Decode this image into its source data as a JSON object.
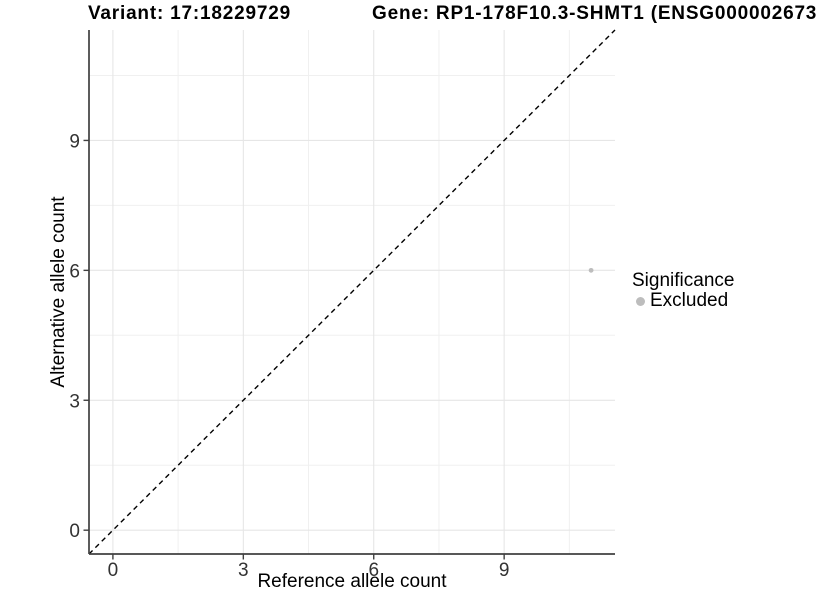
{
  "chart_data": {
    "type": "scatter",
    "title_left": "Variant: 17:18229729",
    "title_right": "Gene: RP1-178F10.3-SHMT1 (ENSG000002673",
    "xlabel": "Reference allele count",
    "ylabel": "Alternative allele count",
    "xlim": [
      -0.55,
      11.55
    ],
    "ylim": [
      -0.55,
      11.55
    ],
    "xticks": [
      0,
      3,
      6,
      9
    ],
    "yticks": [
      0,
      3,
      6,
      9
    ],
    "minor_xticks": [
      1.5,
      4.5,
      7.5,
      10.5
    ],
    "minor_yticks": [
      1.5,
      4.5,
      7.5,
      10.5
    ],
    "grid": "major+minor",
    "identity_line": {
      "slope": 1,
      "intercept": 0,
      "style": "dashed",
      "color": "#000000"
    },
    "series": [
      {
        "name": "Excluded",
        "color": "#bdbdbd",
        "points": [
          {
            "x": 11,
            "y": 6
          }
        ]
      }
    ],
    "legend": {
      "title": "Significance",
      "position": "right",
      "items": [
        {
          "label": "Excluded",
          "color": "#bdbdbd"
        }
      ]
    }
  },
  "colors": {
    "background": "#ffffff",
    "grid_major": "#e6e6e6",
    "grid_minor": "#f0f0f0",
    "axis_line": "#404040",
    "tick_label": "#333333",
    "point_excluded": "#bdbdbd"
  }
}
